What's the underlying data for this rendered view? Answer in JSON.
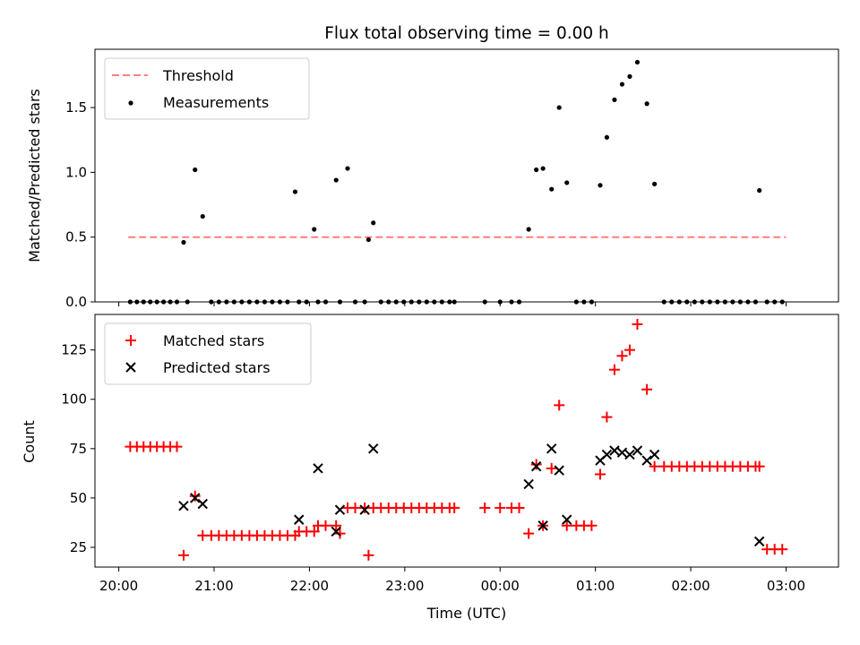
{
  "chart_data": [
    {
      "type": "scatter",
      "title": "Flux total observing time = 0.00 h",
      "xlabel": "",
      "ylabel": "Matched/Predicted stars",
      "xlim": [
        -0.25,
        7.55
      ],
      "ylim": [
        0,
        1.95
      ],
      "yticks": [
        0.0,
        0.5,
        1.0,
        1.5
      ],
      "ytick_labels": [
        "0.0",
        "0.5",
        "1.0",
        "1.5"
      ],
      "legend_position": "top-left",
      "threshold": {
        "name": "Threshold",
        "x": [
          0.1,
          7.0
        ],
        "y": 0.5,
        "color": "#ff7f7f",
        "style": "dashed"
      },
      "series": [
        {
          "name": "Measurements",
          "color": "#000000",
          "marker": "dot",
          "x": [
            0.12,
            0.19,
            0.26,
            0.33,
            0.4,
            0.47,
            0.54,
            0.61,
            0.68,
            0.72,
            0.8,
            0.88,
            0.97,
            1.05,
            1.13,
            1.21,
            1.29,
            1.37,
            1.45,
            1.53,
            1.61,
            1.69,
            1.77,
            1.85,
            1.89,
            1.97,
            2.05,
            2.09,
            2.17,
            2.28,
            2.32,
            2.4,
            2.48,
            2.58,
            2.62,
            2.67,
            2.75,
            2.83,
            2.91,
            2.99,
            3.07,
            3.15,
            3.23,
            3.31,
            3.39,
            3.47,
            3.52,
            3.84,
            4.0,
            4.12,
            4.2,
            4.3,
            4.38,
            4.45,
            4.54,
            4.62,
            4.7,
            4.8,
            4.88,
            4.96,
            5.05,
            5.12,
            5.2,
            5.28,
            5.36,
            5.44,
            5.54,
            5.62,
            5.72,
            5.8,
            5.88,
            5.96,
            6.04,
            6.12,
            6.2,
            6.28,
            6.36,
            6.44,
            6.52,
            6.6,
            6.68,
            6.72,
            6.8,
            6.88,
            6.96
          ],
          "y": [
            0,
            0,
            0,
            0,
            0,
            0,
            0,
            0,
            0.46,
            0,
            1.02,
            0.66,
            0,
            0,
            0,
            0,
            0,
            0,
            0,
            0,
            0,
            0,
            0,
            0.85,
            0,
            0,
            0.56,
            0,
            0,
            0.94,
            0,
            1.03,
            0,
            0,
            0.48,
            0.61,
            0,
            0,
            0,
            0,
            0,
            0,
            0,
            0,
            0,
            0,
            0,
            0,
            0,
            0,
            0,
            0.56,
            1.02,
            1.03,
            0.87,
            1.5,
            0.92,
            0,
            0,
            0,
            0.9,
            1.27,
            1.56,
            1.68,
            1.74,
            1.85,
            1.53,
            0.91,
            0,
            0,
            0,
            0,
            0,
            0,
            0,
            0,
            0,
            0,
            0,
            0,
            0,
            0.86,
            0,
            0,
            0
          ]
        }
      ]
    },
    {
      "type": "scatter",
      "title": "",
      "xlabel": "Time (UTC)",
      "ylabel": "Count",
      "xlim": [
        -0.25,
        7.55
      ],
      "ylim": [
        15,
        143
      ],
      "xticks": [
        0,
        1,
        2,
        3,
        4,
        5,
        6,
        7
      ],
      "xtick_labels": [
        "20:00",
        "21:00",
        "22:00",
        "23:00",
        "00:00",
        "01:00",
        "02:00",
        "03:00"
      ],
      "yticks": [
        25,
        50,
        75,
        100,
        125
      ],
      "ytick_labels": [
        "25",
        "50",
        "75",
        "100",
        "125"
      ],
      "legend_position": "top-left",
      "series": [
        {
          "name": "Matched stars",
          "color": "#ff0000",
          "marker": "plus",
          "x": [
            0.12,
            0.19,
            0.26,
            0.33,
            0.4,
            0.47,
            0.54,
            0.61,
            0.68,
            0.8,
            0.88,
            0.97,
            1.05,
            1.13,
            1.21,
            1.29,
            1.37,
            1.45,
            1.53,
            1.61,
            1.69,
            1.77,
            1.85,
            1.89,
            1.97,
            2.05,
            2.09,
            2.17,
            2.28,
            2.32,
            2.4,
            2.48,
            2.58,
            2.62,
            2.67,
            2.75,
            2.83,
            2.91,
            2.99,
            3.07,
            3.15,
            3.23,
            3.31,
            3.39,
            3.47,
            3.52,
            3.84,
            4.0,
            4.12,
            4.2,
            4.3,
            4.38,
            4.45,
            4.54,
            4.62,
            4.7,
            4.8,
            4.88,
            4.96,
            5.05,
            5.12,
            5.2,
            5.28,
            5.36,
            5.44,
            5.54,
            5.62,
            5.72,
            5.8,
            5.88,
            5.96,
            6.04,
            6.12,
            6.2,
            6.28,
            6.36,
            6.44,
            6.52,
            6.6,
            6.68,
            6.72,
            6.8,
            6.88,
            6.96
          ],
          "y": [
            76,
            76,
            76,
            76,
            76,
            76,
            76,
            76,
            21,
            51,
            31,
            31,
            31,
            31,
            31,
            31,
            31,
            31,
            31,
            31,
            31,
            31,
            31,
            33,
            33,
            33,
            36,
            36,
            36,
            32,
            45,
            45,
            45,
            21,
            45,
            45,
            45,
            45,
            45,
            45,
            45,
            45,
            45,
            45,
            45,
            45,
            45,
            45,
            45,
            45,
            32,
            67,
            36,
            65,
            97,
            36,
            36,
            36,
            36,
            62,
            91,
            115,
            122,
            125,
            138,
            105,
            66,
            66,
            66,
            66,
            66,
            66,
            66,
            66,
            66,
            66,
            66,
            66,
            66,
            66,
            66,
            24,
            24,
            24
          ]
        },
        {
          "name": "Predicted stars",
          "color": "#000000",
          "marker": "x",
          "x": [
            0.68,
            0.8,
            0.88,
            1.89,
            2.09,
            2.28,
            2.32,
            2.58,
            2.67,
            4.3,
            4.38,
            4.45,
            4.54,
            4.62,
            4.7,
            5.05,
            5.12,
            5.2,
            5.28,
            5.36,
            5.44,
            5.54,
            5.62,
            6.72
          ],
          "y": [
            46,
            50,
            47,
            39,
            65,
            33,
            44,
            44,
            75,
            57,
            66,
            36,
            75,
            64,
            39,
            69,
            72,
            74,
            73,
            72,
            74,
            69,
            72,
            28
          ]
        }
      ]
    }
  ]
}
